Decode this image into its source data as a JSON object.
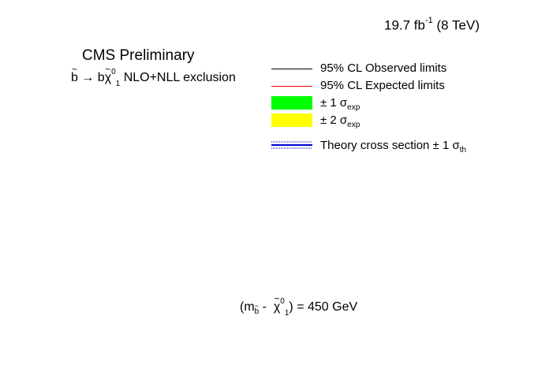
{
  "chart_data": {
    "type": "line",
    "luminosity": {
      "value": "19.7 fb",
      "exp": "-1",
      "energy": "(8 TeV)"
    },
    "header": "CMS Preliminary",
    "process": {
      "sbottom": "b",
      "arrow": "→ b",
      "chi": "χ",
      "chi_sup": "0",
      "chi_sub": "1",
      "label": "NLO+NLL exclusion"
    },
    "legend": {
      "entries": [
        {
          "label": "95% CL Observed limits",
          "style": "line",
          "color": "#000000"
        },
        {
          "label": "95% CL Expected limits",
          "style": "line",
          "color": "#ff0000"
        },
        {
          "label": "± 1 σ",
          "sub": "exp",
          "style": "band",
          "color": "#00ff00"
        },
        {
          "label": "± 2  σ",
          "sub": "exp",
          "style": "band",
          "color": "#ffff00"
        },
        {
          "label": "Theory cross section   ± 1 σ",
          "sub": "th",
          "style": "theory",
          "color": "#0000cc"
        }
      ]
    },
    "mass_condition": {
      "open": "(m",
      "open_sub": "b",
      "minus": " -  ",
      "chi": "χ",
      "chi_sup": "0",
      "chi_sub": "1",
      "close": ") = 450 GeV"
    },
    "series": [],
    "grid": false
  }
}
